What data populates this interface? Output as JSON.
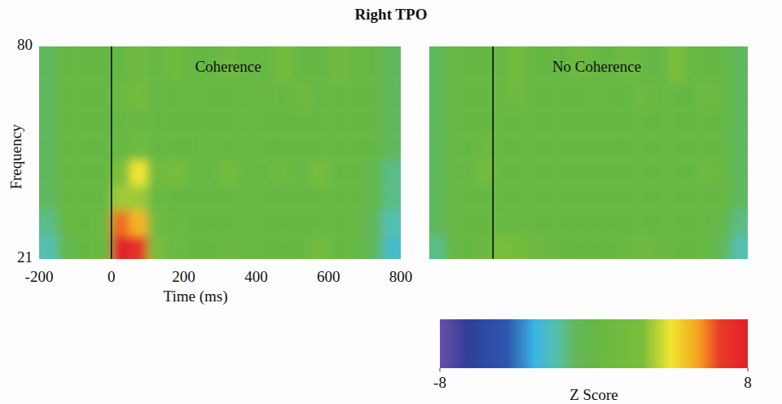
{
  "title": "Right TPO",
  "colorbar": {
    "range": [
      -8,
      8
    ],
    "ticks": [
      -8,
      8
    ],
    "label": "Z Score"
  },
  "chart_data": [
    {
      "type": "heatmap",
      "title": "Coherence",
      "xlabel": "Time (ms)",
      "ylabel": "Frequency",
      "xlim": [
        -200,
        800
      ],
      "ylim": [
        21,
        80
      ],
      "xticks": [
        -200,
        0,
        200,
        400,
        600,
        800
      ],
      "yticks": [
        21,
        80
      ],
      "grid": false,
      "tick_labels": true,
      "onset": 0,
      "x": [
        -175,
        -125,
        -75,
        -25,
        25,
        75,
        125,
        175,
        225,
        275,
        325,
        375,
        425,
        475,
        525,
        575,
        625,
        675,
        725,
        775
      ],
      "y": [
        24,
        31,
        38,
        45,
        52,
        59,
        66,
        74
      ],
      "cells": [
        [
          -2,
          -0.5,
          0,
          0.5,
          8,
          7,
          2,
          0.5,
          0,
          0,
          0.5,
          0,
          0,
          0,
          0,
          1.5,
          0,
          0,
          -1,
          -2.5
        ],
        [
          -1.5,
          0,
          0,
          0.5,
          6,
          5,
          1,
          0.5,
          0,
          0,
          0,
          0,
          0,
          0,
          0,
          0,
          0,
          0,
          -1,
          -2
        ],
        [
          -1,
          0,
          0,
          0,
          3,
          3,
          0.5,
          0,
          0,
          0,
          0,
          0,
          0,
          0,
          0,
          0,
          0,
          0,
          -0.5,
          -1.5
        ],
        [
          -1,
          0,
          0,
          0,
          2.5,
          4,
          1,
          2,
          0.5,
          0,
          1.5,
          0,
          0,
          1,
          0,
          2,
          0,
          0,
          -0.5,
          -1.5
        ],
        [
          -1,
          0,
          0,
          0,
          0.5,
          1,
          0,
          0,
          0,
          0.5,
          0,
          0,
          0,
          0,
          0,
          0,
          0,
          0,
          0,
          -1
        ],
        [
          -1,
          0,
          0,
          0,
          0,
          0.5,
          0,
          0,
          0,
          0,
          0,
          0,
          0,
          0,
          0,
          0,
          0,
          0,
          0,
          -1
        ],
        [
          -1,
          0,
          0,
          0,
          0.5,
          1.5,
          0,
          0,
          0.5,
          0,
          0,
          0,
          0.5,
          0,
          1,
          0,
          0,
          0,
          0,
          -1
        ],
        [
          -1,
          0,
          0,
          0,
          0,
          1,
          0,
          1,
          0,
          0,
          1,
          0,
          0,
          1.5,
          0,
          0,
          1,
          0.5,
          0,
          -1
        ]
      ]
    },
    {
      "type": "heatmap",
      "title": "No Coherence",
      "xlim": [
        -200,
        800
      ],
      "ylim": [
        21,
        80
      ],
      "grid": false,
      "tick_labels": false,
      "onset": 0,
      "x": [
        -175,
        -125,
        -75,
        -25,
        25,
        75,
        125,
        175,
        225,
        275,
        325,
        375,
        425,
        475,
        525,
        575,
        625,
        675,
        725,
        775
      ],
      "y": [
        24,
        31,
        38,
        45,
        52,
        59,
        66,
        74
      ],
      "cells": [
        [
          -1.5,
          0,
          0,
          0.5,
          2,
          1.5,
          1,
          0.5,
          0,
          0,
          0,
          0,
          0.5,
          1,
          0.5,
          0,
          0,
          0,
          -1,
          -2
        ],
        [
          -1,
          0,
          0,
          0,
          0.5,
          0.5,
          0,
          0,
          0,
          0,
          0,
          0,
          0,
          0,
          0,
          0,
          0,
          0,
          -0.5,
          -1.5
        ],
        [
          -1,
          0,
          0,
          0,
          0,
          0,
          0,
          0,
          0,
          0,
          0,
          0,
          0,
          0,
          0,
          0,
          0,
          0,
          0,
          -1
        ],
        [
          -1,
          0,
          0,
          1.5,
          0,
          0,
          0,
          0,
          0,
          0,
          0,
          0,
          0,
          0,
          0,
          0,
          0,
          1,
          0,
          -1
        ],
        [
          -1,
          0,
          0,
          1,
          0,
          0,
          0,
          0,
          0,
          0,
          0,
          0,
          0,
          0,
          0,
          0,
          0,
          0,
          0,
          -1
        ],
        [
          -1,
          0,
          0,
          0,
          0,
          0,
          0,
          0,
          0,
          0,
          0,
          0,
          0,
          0,
          0,
          0,
          0,
          0,
          0,
          -1
        ],
        [
          -1,
          0,
          0,
          0,
          0.5,
          1,
          0,
          0,
          0,
          0,
          0.5,
          0,
          0,
          1,
          0,
          0,
          0,
          1,
          0,
          -1
        ],
        [
          -1,
          0,
          0,
          0,
          0,
          1.5,
          0,
          0,
          0,
          1,
          0,
          0,
          1,
          0,
          0,
          2.5,
          0,
          0,
          0,
          -1
        ]
      ]
    }
  ]
}
